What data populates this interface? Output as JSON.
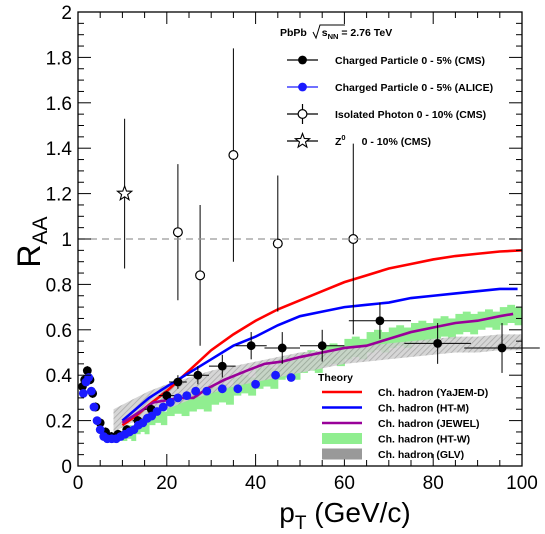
{
  "chart_data": {
    "type": "scatter",
    "title": "",
    "xlabel": {
      "main": "p",
      "sub": "T",
      "rest": " (GeV/c)"
    },
    "ylabel": {
      "main": "R",
      "sub": "AA"
    },
    "xlim": [
      0,
      100
    ],
    "ylim": [
      0,
      2
    ],
    "x_ticks": [
      "0",
      "20",
      "40",
      "60",
      "80",
      "100"
    ],
    "y_ticks": [
      "0",
      "0.2",
      "0.4",
      "0.6",
      "0.8",
      "1",
      "1.2",
      "1.4",
      "1.6",
      "1.8",
      "2"
    ],
    "reference_line": {
      "y": 1,
      "style": "dashed",
      "color": "#999999"
    },
    "system_label": {
      "pre": "PbPb ",
      "sqrt": "s",
      "sub": "NN",
      "post": " = 2.76 TeV"
    },
    "legend_title": "Theory",
    "series": [
      {
        "name": "Charged Particle 0 - 5% (CMS)",
        "kind": "points",
        "marker": "filled-circle",
        "color": "#000000",
        "points": [
          {
            "x": 1.0,
            "y": 0.35,
            "xerr": 0.2,
            "yerr": 0.02
          },
          {
            "x": 1.5,
            "y": 0.38,
            "xerr": 0.25,
            "yerr": 0.02
          },
          {
            "x": 2.1,
            "y": 0.42,
            "xerr": 0.3,
            "yerr": 0.02
          },
          {
            "x": 2.7,
            "y": 0.38,
            "xerr": 0.3,
            "yerr": 0.02
          },
          {
            "x": 3.3,
            "y": 0.32,
            "xerr": 0.3,
            "yerr": 0.02
          },
          {
            "x": 4.0,
            "y": 0.26,
            "xerr": 0.4,
            "yerr": 0.02
          },
          {
            "x": 5.0,
            "y": 0.19,
            "xerr": 0.5,
            "yerr": 0.02
          },
          {
            "x": 6.2,
            "y": 0.15,
            "xerr": 0.6,
            "yerr": 0.02
          },
          {
            "x": 7.5,
            "y": 0.13,
            "xerr": 0.7,
            "yerr": 0.02
          },
          {
            "x": 9.0,
            "y": 0.14,
            "xerr": 0.8,
            "yerr": 0.02
          },
          {
            "x": 11.0,
            "y": 0.16,
            "xerr": 1.0,
            "yerr": 0.02
          },
          {
            "x": 13.5,
            "y": 0.2,
            "xerr": 1.2,
            "yerr": 0.02
          },
          {
            "x": 16.5,
            "y": 0.25,
            "xerr": 1.5,
            "yerr": 0.02
          },
          {
            "x": 20.0,
            "y": 0.31,
            "xerr": 1.8,
            "yerr": 0.02
          },
          {
            "x": 22.5,
            "y": 0.37,
            "xerr": 2.0,
            "yerr": 0.03
          },
          {
            "x": 27.0,
            "y": 0.4,
            "xerr": 2.5,
            "yerr": 0.04
          },
          {
            "x": 32.5,
            "y": 0.44,
            "xerr": 3.0,
            "yerr": 0.05
          },
          {
            "x": 39.0,
            "y": 0.53,
            "xerr": 3.5,
            "yerr": 0.06
          },
          {
            "x": 46.0,
            "y": 0.52,
            "xerr": 4.0,
            "yerr": 0.07
          },
          {
            "x": 55.0,
            "y": 0.53,
            "xerr": 5.0,
            "yerr": 0.07
          },
          {
            "x": 68.0,
            "y": 0.64,
            "xerr": 7.0,
            "yerr": 0.08
          },
          {
            "x": 81.0,
            "y": 0.54,
            "xerr": 7.5,
            "yerr": 0.09
          },
          {
            "x": 95.5,
            "y": 0.52,
            "xerr": 8.5,
            "yerr": 0.11
          }
        ]
      },
      {
        "name": "Charged Particle 0 - 5% (ALICE)",
        "kind": "points",
        "marker": "filled-circle",
        "color": "#1a1aff",
        "points": [
          {
            "x": 1.2,
            "y": 0.32,
            "xerr": 0,
            "yerr": 0
          },
          {
            "x": 1.8,
            "y": 0.37,
            "xerr": 0,
            "yerr": 0
          },
          {
            "x": 2.4,
            "y": 0.39,
            "xerr": 0,
            "yerr": 0
          },
          {
            "x": 3.0,
            "y": 0.33,
            "xerr": 0,
            "yerr": 0
          },
          {
            "x": 3.6,
            "y": 0.26,
            "xerr": 0,
            "yerr": 0
          },
          {
            "x": 4.3,
            "y": 0.2,
            "xerr": 0,
            "yerr": 0
          },
          {
            "x": 5.0,
            "y": 0.16,
            "xerr": 0,
            "yerr": 0
          },
          {
            "x": 5.8,
            "y": 0.13,
            "xerr": 0,
            "yerr": 0
          },
          {
            "x": 6.6,
            "y": 0.12,
            "xerr": 0,
            "yerr": 0
          },
          {
            "x": 7.6,
            "y": 0.12,
            "xerr": 0,
            "yerr": 0
          },
          {
            "x": 8.6,
            "y": 0.12,
            "xerr": 0,
            "yerr": 0
          },
          {
            "x": 9.6,
            "y": 0.13,
            "xerr": 0,
            "yerr": 0
          },
          {
            "x": 10.6,
            "y": 0.14,
            "xerr": 0,
            "yerr": 0
          },
          {
            "x": 11.6,
            "y": 0.15,
            "xerr": 0,
            "yerr": 0
          },
          {
            "x": 12.6,
            "y": 0.16,
            "xerr": 0,
            "yerr": 0
          },
          {
            "x": 13.6,
            "y": 0.18,
            "xerr": 0,
            "yerr": 0
          },
          {
            "x": 14.6,
            "y": 0.19,
            "xerr": 0,
            "yerr": 0
          },
          {
            "x": 15.6,
            "y": 0.21,
            "xerr": 0,
            "yerr": 0
          },
          {
            "x": 16.6,
            "y": 0.22,
            "xerr": 0,
            "yerr": 0
          },
          {
            "x": 17.8,
            "y": 0.24,
            "xerr": 0,
            "yerr": 0
          },
          {
            "x": 19.2,
            "y": 0.26,
            "xerr": 0,
            "yerr": 0
          },
          {
            "x": 20.8,
            "y": 0.28,
            "xerr": 0,
            "yerr": 0
          },
          {
            "x": 22.5,
            "y": 0.3,
            "xerr": 0,
            "yerr": 0
          },
          {
            "x": 24.5,
            "y": 0.31,
            "xerr": 0,
            "yerr": 0
          },
          {
            "x": 26.5,
            "y": 0.33,
            "xerr": 0,
            "yerr": 0
          },
          {
            "x": 29.0,
            "y": 0.33,
            "xerr": 0,
            "yerr": 0
          },
          {
            "x": 32.5,
            "y": 0.34,
            "xerr": 0,
            "yerr": 0
          },
          {
            "x": 36.0,
            "y": 0.34,
            "xerr": 0,
            "yerr": 0
          },
          {
            "x": 40.0,
            "y": 0.36,
            "xerr": 0,
            "yerr": 0
          },
          {
            "x": 44.5,
            "y": 0.4,
            "xerr": 0,
            "yerr": 0
          },
          {
            "x": 48.0,
            "y": 0.39,
            "xerr": 0,
            "yerr": 0
          }
        ]
      },
      {
        "name": "Isolated Photon 0 - 10% (CMS)",
        "kind": "points",
        "marker": "open-circle",
        "color": "#000000",
        "points": [
          {
            "x": 22.5,
            "y": 1.03,
            "xerr": 0,
            "yerr": 0.3
          },
          {
            "x": 27.5,
            "y": 0.84,
            "xerr": 0,
            "yerr": 0.31
          },
          {
            "x": 35.0,
            "y": 1.37,
            "xerr": 0,
            "yerr": 0.47
          },
          {
            "x": 45.0,
            "y": 0.98,
            "xerr": 0,
            "yerr": 0.3
          },
          {
            "x": 62.0,
            "y": 1.0,
            "xerr": 0,
            "yerr": 0.42
          }
        ]
      },
      {
        "name": "Z",
        "name_sup": "0",
        "name_rest": "0 - 10% (CMS)",
        "kind": "points",
        "marker": "open-star",
        "color": "#000000",
        "points": [
          {
            "x": 10.5,
            "y": 1.2,
            "xerr": 0,
            "yerr": 0.33
          }
        ]
      },
      {
        "name": "Ch. hadron (YaJEM-D)",
        "kind": "line",
        "color": "#ff0000",
        "points": [
          [
            10,
            0.18
          ],
          [
            13,
            0.22
          ],
          [
            16,
            0.27
          ],
          [
            20,
            0.33
          ],
          [
            25,
            0.42
          ],
          [
            30,
            0.51
          ],
          [
            35,
            0.58
          ],
          [
            40,
            0.64
          ],
          [
            45,
            0.69
          ],
          [
            50,
            0.73
          ],
          [
            55,
            0.77
          ],
          [
            60,
            0.81
          ],
          [
            65,
            0.84
          ],
          [
            70,
            0.87
          ],
          [
            75,
            0.89
          ],
          [
            80,
            0.91
          ],
          [
            85,
            0.925
          ],
          [
            90,
            0.935
          ],
          [
            95,
            0.945
          ],
          [
            100,
            0.95
          ]
        ]
      },
      {
        "name": "Ch. hadron (HT-M)",
        "kind": "line",
        "color": "#0000ff",
        "points": [
          [
            10,
            0.2
          ],
          [
            13,
            0.25
          ],
          [
            16,
            0.3
          ],
          [
            20,
            0.35
          ],
          [
            25,
            0.41
          ],
          [
            30,
            0.47
          ],
          [
            35,
            0.53
          ],
          [
            40,
            0.57
          ],
          [
            45,
            0.62
          ],
          [
            50,
            0.66
          ],
          [
            55,
            0.68
          ],
          [
            60,
            0.7
          ],
          [
            65,
            0.71
          ],
          [
            70,
            0.72
          ],
          [
            75,
            0.74
          ],
          [
            80,
            0.75
          ],
          [
            85,
            0.76
          ],
          [
            90,
            0.77
          ],
          [
            95,
            0.78
          ],
          [
            99,
            0.78
          ]
        ]
      },
      {
        "name": "Ch. hadron (JEWEL)",
        "kind": "line",
        "color": "#990099",
        "points": [
          [
            10,
            0.19
          ],
          [
            14,
            0.24
          ],
          [
            17,
            0.28
          ],
          [
            20,
            0.29
          ],
          [
            23,
            0.3
          ],
          [
            26,
            0.3
          ],
          [
            29,
            0.34
          ],
          [
            33,
            0.38
          ],
          [
            38,
            0.42
          ],
          [
            42,
            0.45
          ],
          [
            46,
            0.46
          ],
          [
            50,
            0.48
          ],
          [
            55,
            0.5
          ],
          [
            60,
            0.52
          ],
          [
            65,
            0.53
          ],
          [
            70,
            0.56
          ],
          [
            75,
            0.59
          ],
          [
            80,
            0.61
          ],
          [
            85,
            0.63
          ],
          [
            90,
            0.64
          ],
          [
            95,
            0.66
          ],
          [
            98,
            0.67
          ]
        ]
      },
      {
        "name": "Ch. hadron (HT-W)",
        "kind": "band",
        "color": "#90ee90",
        "points": [
          [
            10,
            0.17,
            0.11
          ],
          [
            13,
            0.2,
            0.14
          ],
          [
            16,
            0.24,
            0.18
          ],
          [
            20,
            0.29,
            0.22
          ],
          [
            25,
            0.32,
            0.24
          ],
          [
            30,
            0.35,
            0.27
          ],
          [
            35,
            0.39,
            0.31
          ],
          [
            40,
            0.43,
            0.34
          ],
          [
            45,
            0.47,
            0.38
          ],
          [
            50,
            0.5,
            0.41
          ],
          [
            55,
            0.53,
            0.44
          ],
          [
            60,
            0.56,
            0.47
          ],
          [
            65,
            0.59,
            0.5
          ],
          [
            70,
            0.61,
            0.52
          ],
          [
            75,
            0.63,
            0.54
          ],
          [
            80,
            0.65,
            0.56
          ],
          [
            85,
            0.67,
            0.58
          ],
          [
            90,
            0.68,
            0.6
          ],
          [
            95,
            0.7,
            0.62
          ],
          [
            100,
            0.72,
            0.64
          ]
        ]
      },
      {
        "name": "Ch. hadron (GLV)",
        "kind": "band",
        "color": "#999999",
        "points": [
          [
            8,
            0.25,
            0.15
          ],
          [
            12,
            0.29,
            0.19
          ],
          [
            16,
            0.33,
            0.22
          ],
          [
            20,
            0.36,
            0.25
          ],
          [
            25,
            0.39,
            0.29
          ],
          [
            30,
            0.42,
            0.32
          ],
          [
            35,
            0.44,
            0.35
          ],
          [
            40,
            0.46,
            0.37
          ],
          [
            45,
            0.48,
            0.39
          ],
          [
            50,
            0.5,
            0.41
          ],
          [
            55,
            0.51,
            0.43
          ],
          [
            60,
            0.52,
            0.45
          ],
          [
            65,
            0.53,
            0.46
          ],
          [
            70,
            0.54,
            0.47
          ],
          [
            75,
            0.55,
            0.48
          ],
          [
            80,
            0.56,
            0.49
          ],
          [
            85,
            0.57,
            0.5
          ],
          [
            90,
            0.57,
            0.5
          ],
          [
            95,
            0.58,
            0.51
          ],
          [
            100,
            0.58,
            0.51
          ]
        ]
      }
    ]
  }
}
